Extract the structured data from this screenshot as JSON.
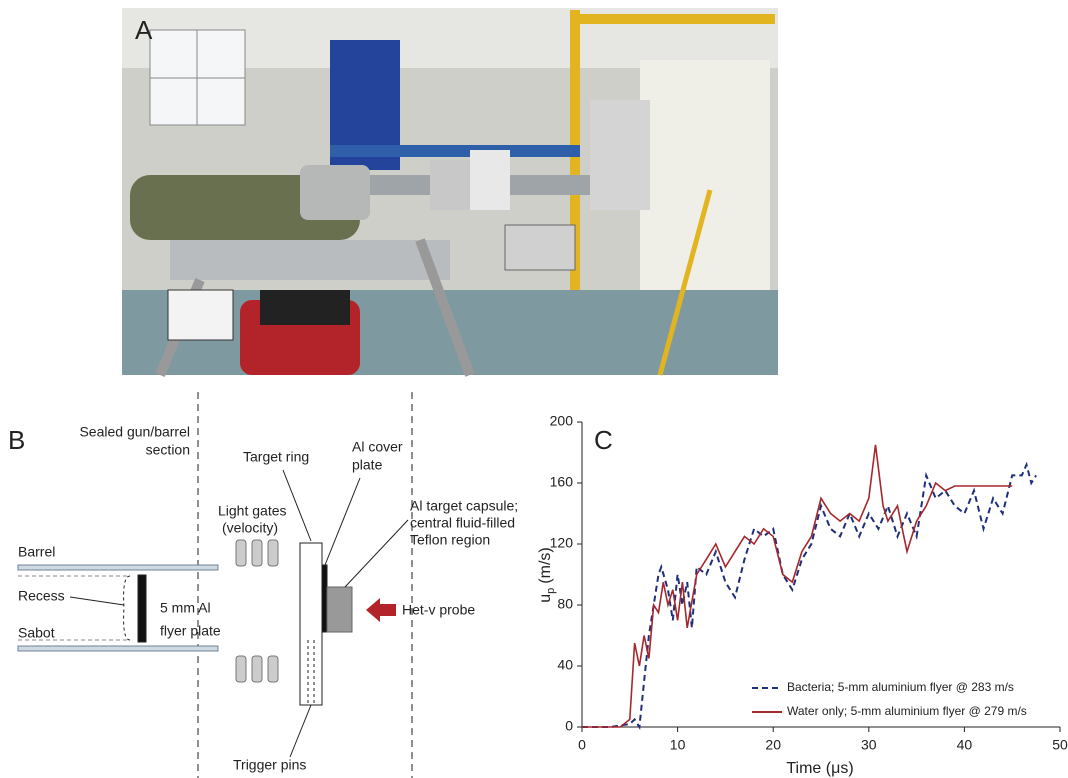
{
  "panel_a": {
    "label": "A"
  },
  "panel_b": {
    "label": "B",
    "section": [
      "Sealed gun/barrel",
      "section"
    ],
    "barrel": "Barrel",
    "recess": "Recess",
    "sabot": "Sabot",
    "flyer": [
      "5 mm Al",
      "flyer plate"
    ],
    "light_gates": [
      "Light gates",
      "(velocity)"
    ],
    "target_ring": "Target ring",
    "cover_plate": [
      "Al cover",
      "plate"
    ],
    "capsule": [
      "Al target capsule;",
      "central fluid-filled",
      "Teflon region"
    ],
    "probe": "Het-v probe",
    "trigger_pins": "Trigger pins"
  },
  "chart_data": {
    "type": "line",
    "panel_label": "C",
    "x_label": "Time (μs)",
    "y_label": {
      "base": "u",
      "sub": "p",
      "unit": "(m/s)"
    },
    "xlim": [
      0,
      50
    ],
    "xticks": [
      0,
      10,
      20,
      30,
      40,
      50
    ],
    "ylim": [
      0,
      200
    ],
    "yticks": [
      0,
      40,
      80,
      120,
      160,
      200
    ],
    "grid": false,
    "legend": "lower right",
    "series": [
      {
        "name": "Bacteria; 5-mm aluminium flyer @ 283 m/s",
        "color": "#1f2f7a",
        "dashed": true,
        "x": [
          0,
          3,
          5,
          5.5,
          6,
          6.5,
          7,
          7.5,
          8,
          8.3,
          9,
          9.5,
          10,
          10.5,
          11,
          11.5,
          12,
          13,
          14,
          15,
          16,
          17,
          18,
          19,
          20,
          21,
          22,
          23,
          24,
          25,
          26,
          27,
          28,
          29,
          30,
          31,
          32,
          33,
          34,
          35,
          36,
          37,
          38,
          39,
          40,
          41,
          42,
          43,
          44,
          45,
          46,
          46.5,
          47,
          47.5
        ],
        "values": [
          0,
          0,
          2,
          5,
          0,
          30,
          60,
          80,
          100,
          105,
          90,
          70,
          100,
          80,
          95,
          65,
          105,
          100,
          115,
          95,
          85,
          110,
          130,
          125,
          130,
          100,
          90,
          110,
          120,
          145,
          130,
          125,
          140,
          125,
          140,
          130,
          145,
          125,
          140,
          125,
          165,
          150,
          155,
          145,
          140,
          155,
          130,
          150,
          140,
          165,
          165,
          172,
          160,
          165
        ]
      },
      {
        "name": "Water only; 5-mm aluminium flyer @ 279 m/s",
        "color": "#a5282e",
        "dashed": false,
        "x": [
          0,
          4,
          5,
          5.5,
          6,
          6.5,
          7,
          7.5,
          8,
          8.5,
          9,
          9.5,
          10,
          10.5,
          11,
          12,
          13,
          14,
          15,
          16,
          17,
          18,
          19,
          20,
          21,
          22,
          23,
          24,
          25,
          26,
          27,
          28,
          29,
          30,
          30.7,
          31.5,
          32,
          33,
          34,
          35,
          36,
          37,
          38,
          39,
          42,
          45
        ],
        "values": [
          0,
          0,
          5,
          55,
          40,
          60,
          45,
          80,
          75,
          95,
          80,
          90,
          70,
          95,
          65,
          100,
          110,
          120,
          105,
          115,
          125,
          120,
          130,
          125,
          100,
          95,
          115,
          125,
          150,
          140,
          135,
          140,
          135,
          150,
          185,
          145,
          135,
          145,
          115,
          135,
          145,
          160,
          155,
          158,
          158,
          158
        ]
      }
    ]
  }
}
